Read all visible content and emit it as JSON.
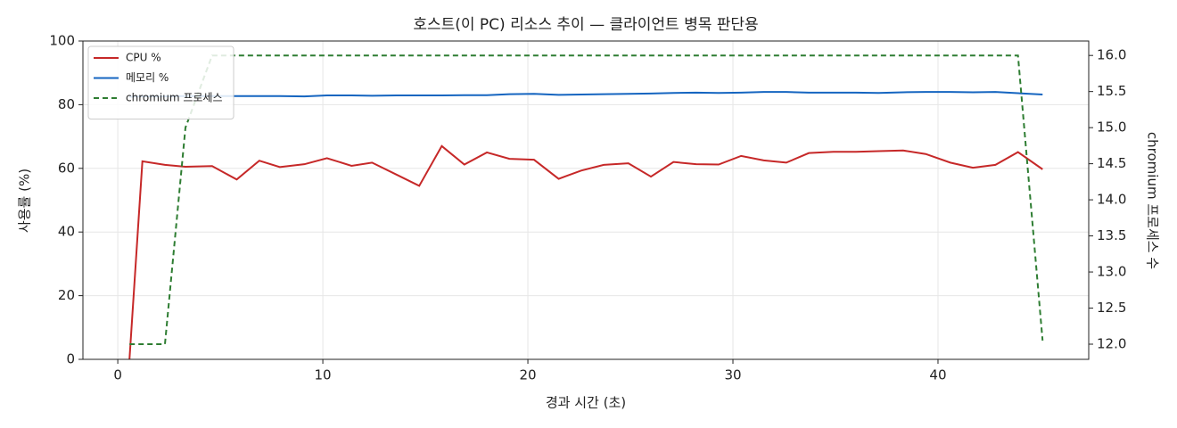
{
  "chart_data": {
    "type": "line",
    "title": "호스트(이 PC) 리소스 추이 — 클라이언트 병목 판단용",
    "x_label": "경과 시간 (초)",
    "y_label": "사용률 (%)",
    "y2_label": "chromium 프로세스 수",
    "x": [
      0.57,
      1.2,
      2.3,
      3.3,
      4.6,
      5.8,
      6.9,
      7.9,
      9.1,
      10.2,
      11.4,
      12.4,
      13.6,
      14.7,
      15.8,
      16.9,
      18.0,
      19.1,
      20.3,
      21.5,
      22.6,
      23.7,
      24.9,
      26.0,
      27.1,
      28.2,
      29.3,
      30.4,
      31.5,
      32.6,
      33.7,
      34.9,
      36.0,
      37.1,
      38.3,
      39.4,
      40.6,
      41.7,
      42.8,
      43.9,
      45.1
    ],
    "series": [
      {
        "name": "CPU %",
        "color": "#c62828",
        "dash": false,
        "values": [
          0,
          62.2,
          61.1,
          60.5,
          60.7,
          56.5,
          62.4,
          60.4,
          61.3,
          63.2,
          60.8,
          61.8,
          58.0,
          54.5,
          67.0,
          61.2,
          65.0,
          63.0,
          62.7,
          56.7,
          59.3,
          61.1,
          61.6,
          57.4,
          62.0,
          61.3,
          61.2,
          63.9,
          62.5,
          61.8,
          64.8,
          65.2,
          65.2,
          65.4,
          65.6,
          64.5,
          61.8,
          60.2,
          61.1,
          65.1,
          59.7
        ]
      },
      {
        "name": "메모리 %",
        "color": "#1565c0",
        "dash": false,
        "values": [
          82.5,
          82.6,
          82.6,
          82.7,
          82.7,
          82.7,
          82.7,
          82.7,
          82.6,
          82.9,
          82.9,
          82.8,
          82.9,
          82.9,
          82.9,
          83.0,
          83.0,
          83.3,
          83.4,
          83.1,
          83.2,
          83.3,
          83.4,
          83.5,
          83.7,
          83.8,
          83.7,
          83.8,
          84.0,
          84.0,
          83.8,
          83.8,
          83.8,
          83.7,
          83.9,
          84.0,
          84.0,
          83.9,
          84.0,
          83.6,
          83.2
        ]
      },
      {
        "name": "chromium 프로세스",
        "color": "#2e7d32",
        "dash": true,
        "axis": "y2",
        "values": [
          12,
          12,
          12,
          15,
          16,
          16,
          16,
          16,
          16,
          16,
          16,
          16,
          16,
          16,
          16,
          16,
          16,
          16,
          16,
          16,
          16,
          16,
          16,
          16,
          16,
          16,
          16,
          16,
          16,
          16,
          16,
          16,
          16,
          16,
          16,
          16,
          16,
          16,
          16,
          16,
          12.05
        ]
      }
    ],
    "xlim": [
      -1.7,
      47.35
    ],
    "xticks": [
      0,
      10,
      20,
      30,
      40
    ],
    "ylim": [
      0,
      100
    ],
    "yticks": [
      0,
      20,
      40,
      60,
      80,
      100
    ],
    "y2lim": [
      11.79,
      16.2
    ],
    "y2ticks": [
      {
        "value": 12,
        "label": "12.0"
      },
      {
        "value": 12.5,
        "label": "12.5"
      },
      {
        "value": 13,
        "label": "13.0"
      },
      {
        "value": 13.5,
        "label": "13.5"
      },
      {
        "value": 14,
        "label": "14.0"
      },
      {
        "value": 14.5,
        "label": "14.5"
      },
      {
        "value": 15,
        "label": "15.0"
      },
      {
        "value": 15.5,
        "label": "15.5"
      },
      {
        "value": 16,
        "label": "16.0"
      }
    ],
    "grid": true,
    "legend": "upper-left"
  }
}
